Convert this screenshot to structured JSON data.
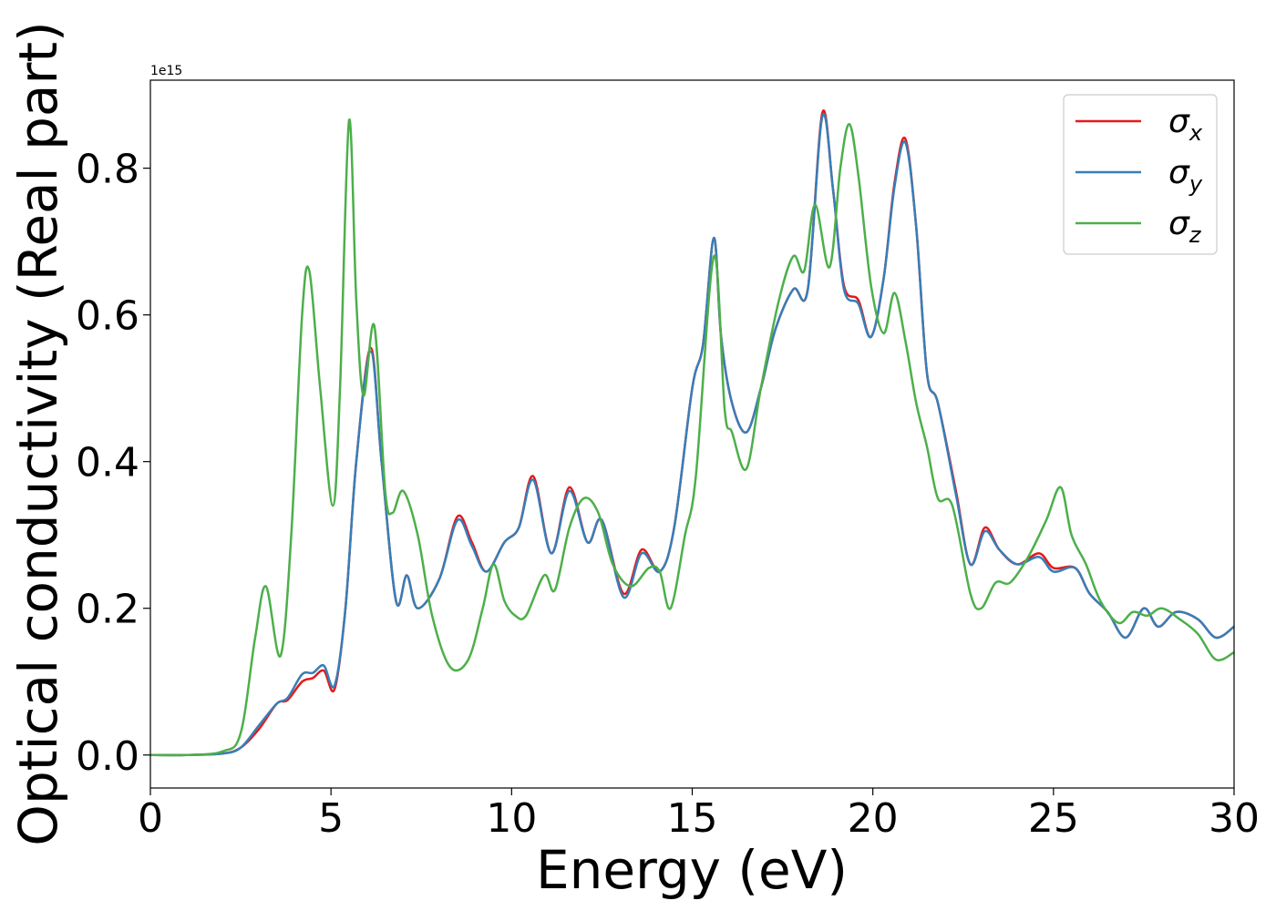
{
  "chart_data": {
    "type": "line",
    "xlabel": "Energy (eV)",
    "ylabel": "Optical conductivity (Real part)",
    "offset_text": "1e15",
    "xlim": [
      0,
      30
    ],
    "ylim": [
      -0.045,
      0.92
    ],
    "xticks": [
      0,
      5,
      10,
      15,
      20,
      25,
      30
    ],
    "xtick_labels": [
      "0",
      "5",
      "10",
      "15",
      "20",
      "25",
      "30"
    ],
    "yticks": [
      0.0,
      0.2,
      0.4,
      0.6,
      0.8
    ],
    "ytick_labels": [
      "0.0",
      "0.2",
      "0.4",
      "0.6",
      "0.8"
    ],
    "grid": false,
    "legend_position": "top-right",
    "series": [
      {
        "name": "σx",
        "symbol": "σ",
        "subscript": "x",
        "color": "#e41a1c",
        "points": [
          [
            0,
            0
          ],
          [
            1,
            0
          ],
          [
            2,
            0.002
          ],
          [
            2.5,
            0.01
          ],
          [
            3,
            0.035
          ],
          [
            3.5,
            0.07
          ],
          [
            3.8,
            0.075
          ],
          [
            4.2,
            0.1
          ],
          [
            4.5,
            0.105
          ],
          [
            4.8,
            0.115
          ],
          [
            5.1,
            0.09
          ],
          [
            5.4,
            0.2
          ],
          [
            5.7,
            0.4
          ],
          [
            6.1,
            0.555
          ],
          [
            6.4,
            0.4
          ],
          [
            6.8,
            0.21
          ],
          [
            7.1,
            0.245
          ],
          [
            7.4,
            0.2
          ],
          [
            8,
            0.24
          ],
          [
            8.5,
            0.325
          ],
          [
            8.9,
            0.29
          ],
          [
            9.3,
            0.25
          ],
          [
            9.8,
            0.29
          ],
          [
            10.2,
            0.31
          ],
          [
            10.6,
            0.38
          ],
          [
            11.1,
            0.275
          ],
          [
            11.6,
            0.365
          ],
          [
            12.1,
            0.29
          ],
          [
            12.5,
            0.32
          ],
          [
            13.1,
            0.22
          ],
          [
            13.6,
            0.28
          ],
          [
            14.1,
            0.25
          ],
          [
            14.5,
            0.31
          ],
          [
            15,
            0.5
          ],
          [
            15.3,
            0.56
          ],
          [
            15.6,
            0.705
          ],
          [
            15.8,
            0.57
          ],
          [
            16.1,
            0.48
          ],
          [
            16.5,
            0.44
          ],
          [
            16.9,
            0.5
          ],
          [
            17.3,
            0.58
          ],
          [
            17.8,
            0.635
          ],
          [
            18.2,
            0.635
          ],
          [
            18.6,
            0.875
          ],
          [
            18.9,
            0.77
          ],
          [
            19.2,
            0.64
          ],
          [
            19.6,
            0.62
          ],
          [
            19.95,
            0.57
          ],
          [
            20.3,
            0.65
          ],
          [
            20.6,
            0.78
          ],
          [
            20.9,
            0.84
          ],
          [
            21.2,
            0.72
          ],
          [
            21.5,
            0.52
          ],
          [
            21.8,
            0.48
          ],
          [
            22.3,
            0.36
          ],
          [
            22.7,
            0.26
          ],
          [
            23.1,
            0.31
          ],
          [
            23.5,
            0.28
          ],
          [
            24,
            0.26
          ],
          [
            24.6,
            0.275
          ],
          [
            25,
            0.255
          ],
          [
            25.6,
            0.255
          ],
          [
            26,
            0.22
          ],
          [
            26.5,
            0.195
          ],
          [
            27,
            0.16
          ],
          [
            27.5,
            0.2
          ],
          [
            27.9,
            0.175
          ],
          [
            28.4,
            0.195
          ],
          [
            29,
            0.185
          ],
          [
            29.5,
            0.16
          ],
          [
            30,
            0.175
          ]
        ]
      },
      {
        "name": "σy",
        "symbol": "σ",
        "subscript": "y",
        "color": "#377eb8",
        "points": [
          [
            0,
            0
          ],
          [
            1,
            0
          ],
          [
            2,
            0.002
          ],
          [
            2.5,
            0.01
          ],
          [
            3,
            0.04
          ],
          [
            3.5,
            0.07
          ],
          [
            3.8,
            0.078
          ],
          [
            4.2,
            0.11
          ],
          [
            4.5,
            0.112
          ],
          [
            4.8,
            0.122
          ],
          [
            5.1,
            0.095
          ],
          [
            5.4,
            0.2
          ],
          [
            5.7,
            0.4
          ],
          [
            6.1,
            0.55
          ],
          [
            6.4,
            0.4
          ],
          [
            6.8,
            0.21
          ],
          [
            7.1,
            0.245
          ],
          [
            7.4,
            0.2
          ],
          [
            8,
            0.24
          ],
          [
            8.5,
            0.32
          ],
          [
            8.9,
            0.285
          ],
          [
            9.3,
            0.25
          ],
          [
            9.8,
            0.29
          ],
          [
            10.2,
            0.31
          ],
          [
            10.6,
            0.375
          ],
          [
            11.1,
            0.275
          ],
          [
            11.6,
            0.36
          ],
          [
            12.1,
            0.29
          ],
          [
            12.5,
            0.32
          ],
          [
            13.1,
            0.215
          ],
          [
            13.6,
            0.275
          ],
          [
            14.1,
            0.25
          ],
          [
            14.5,
            0.31
          ],
          [
            15,
            0.5
          ],
          [
            15.3,
            0.56
          ],
          [
            15.6,
            0.705
          ],
          [
            15.8,
            0.57
          ],
          [
            16.1,
            0.48
          ],
          [
            16.5,
            0.44
          ],
          [
            16.9,
            0.5
          ],
          [
            17.3,
            0.58
          ],
          [
            17.8,
            0.635
          ],
          [
            18.2,
            0.635
          ],
          [
            18.6,
            0.87
          ],
          [
            18.9,
            0.77
          ],
          [
            19.2,
            0.635
          ],
          [
            19.6,
            0.615
          ],
          [
            19.95,
            0.57
          ],
          [
            20.3,
            0.65
          ],
          [
            20.6,
            0.775
          ],
          [
            20.9,
            0.835
          ],
          [
            21.2,
            0.72
          ],
          [
            21.5,
            0.52
          ],
          [
            21.8,
            0.48
          ],
          [
            22.3,
            0.355
          ],
          [
            22.7,
            0.26
          ],
          [
            23.1,
            0.305
          ],
          [
            23.5,
            0.28
          ],
          [
            24,
            0.26
          ],
          [
            24.6,
            0.27
          ],
          [
            25,
            0.25
          ],
          [
            25.6,
            0.255
          ],
          [
            26,
            0.22
          ],
          [
            26.5,
            0.195
          ],
          [
            27,
            0.16
          ],
          [
            27.5,
            0.2
          ],
          [
            27.9,
            0.175
          ],
          [
            28.4,
            0.195
          ],
          [
            29,
            0.185
          ],
          [
            29.5,
            0.16
          ],
          [
            30,
            0.175
          ]
        ]
      },
      {
        "name": "σz",
        "symbol": "σ",
        "subscript": "z",
        "color": "#4daf4a",
        "points": [
          [
            0,
            0
          ],
          [
            1,
            0
          ],
          [
            2,
            0.005
          ],
          [
            2.5,
            0.03
          ],
          [
            2.9,
            0.16
          ],
          [
            3.2,
            0.23
          ],
          [
            3.6,
            0.135
          ],
          [
            3.9,
            0.3
          ],
          [
            4.2,
            0.6
          ],
          [
            4.4,
            0.66
          ],
          [
            4.7,
            0.5
          ],
          [
            5.05,
            0.34
          ],
          [
            5.25,
            0.5
          ],
          [
            5.5,
            0.865
          ],
          [
            5.7,
            0.62
          ],
          [
            5.9,
            0.49
          ],
          [
            6.2,
            0.585
          ],
          [
            6.5,
            0.36
          ],
          [
            6.7,
            0.33
          ],
          [
            7,
            0.36
          ],
          [
            7.4,
            0.3
          ],
          [
            7.8,
            0.19
          ],
          [
            8.3,
            0.12
          ],
          [
            8.8,
            0.13
          ],
          [
            9.2,
            0.2
          ],
          [
            9.5,
            0.26
          ],
          [
            9.8,
            0.21
          ],
          [
            10.1,
            0.19
          ],
          [
            10.4,
            0.19
          ],
          [
            10.9,
            0.245
          ],
          [
            11.2,
            0.225
          ],
          [
            11.6,
            0.31
          ],
          [
            12,
            0.35
          ],
          [
            12.4,
            0.33
          ],
          [
            12.8,
            0.26
          ],
          [
            13.3,
            0.23
          ],
          [
            13.8,
            0.255
          ],
          [
            14.1,
            0.25
          ],
          [
            14.4,
            0.2
          ],
          [
            14.8,
            0.3
          ],
          [
            15.1,
            0.38
          ],
          [
            15.6,
            0.68
          ],
          [
            15.9,
            0.47
          ],
          [
            16.1,
            0.44
          ],
          [
            16.5,
            0.39
          ],
          [
            16.9,
            0.5
          ],
          [
            17.4,
            0.62
          ],
          [
            17.8,
            0.68
          ],
          [
            18.1,
            0.66
          ],
          [
            18.4,
            0.75
          ],
          [
            18.8,
            0.665
          ],
          [
            19.1,
            0.8
          ],
          [
            19.35,
            0.86
          ],
          [
            19.6,
            0.79
          ],
          [
            19.95,
            0.64
          ],
          [
            20.3,
            0.575
          ],
          [
            20.6,
            0.63
          ],
          [
            20.9,
            0.565
          ],
          [
            21.2,
            0.48
          ],
          [
            21.5,
            0.42
          ],
          [
            21.8,
            0.35
          ],
          [
            22.2,
            0.34
          ],
          [
            22.7,
            0.22
          ],
          [
            23,
            0.2
          ],
          [
            23.4,
            0.235
          ],
          [
            23.8,
            0.235
          ],
          [
            24.3,
            0.27
          ],
          [
            24.8,
            0.32
          ],
          [
            25.2,
            0.365
          ],
          [
            25.5,
            0.3
          ],
          [
            25.9,
            0.26
          ],
          [
            26.3,
            0.21
          ],
          [
            26.8,
            0.18
          ],
          [
            27.2,
            0.195
          ],
          [
            27.6,
            0.19
          ],
          [
            28,
            0.2
          ],
          [
            28.5,
            0.185
          ],
          [
            29,
            0.165
          ],
          [
            29.5,
            0.13
          ],
          [
            30,
            0.14
          ]
        ]
      }
    ]
  }
}
